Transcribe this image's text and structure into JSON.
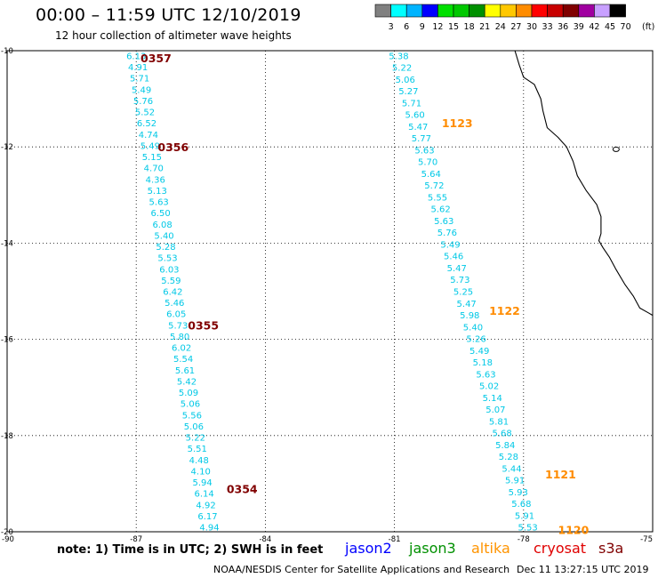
{
  "header": {
    "title": "00:00 – 11:59 UTC 12/10/2019",
    "subtitle": "12 hour collection of altimeter wave heights"
  },
  "legend": {
    "unit": "(ft)",
    "bins": [
      {
        "label": "3",
        "color": "#808080"
      },
      {
        "label": "6",
        "color": "#00ffff"
      },
      {
        "label": "9",
        "color": "#00b4ff"
      },
      {
        "label": "12",
        "color": "#0000ff"
      },
      {
        "label": "15",
        "color": "#00e000"
      },
      {
        "label": "18",
        "color": "#00c800"
      },
      {
        "label": "21",
        "color": "#009000"
      },
      {
        "label": "24",
        "color": "#ffff00"
      },
      {
        "label": "27",
        "color": "#ffc800"
      },
      {
        "label": "30",
        "color": "#ff8c00"
      },
      {
        "label": "33",
        "color": "#ff0000"
      },
      {
        "label": "36",
        "color": "#c80000"
      },
      {
        "label": "39",
        "color": "#800000"
      },
      {
        "label": "42",
        "color": "#a000a0"
      },
      {
        "label": "45",
        "color": "#c8a0ff"
      },
      {
        "label": "70",
        "color": "#000000"
      }
    ]
  },
  "map": {
    "lon_range": [
      -90,
      -75
    ],
    "lat_range": [
      -20,
      -10
    ],
    "x_ticks": [
      "-90",
      "-87",
      "-84",
      "-81",
      "-78",
      "-75"
    ],
    "y_ticks": [
      "-10",
      "-12",
      "-14",
      "-16",
      "-18",
      "-20"
    ],
    "grid": true,
    "grid_style": "dotted",
    "reading_color": "#00c8e6",
    "tracks": [
      {
        "id": "west-track",
        "start": {
          "lon": -87.0,
          "lat": -10.1
        },
        "end": {
          "lon": -85.3,
          "lat": -19.9
        },
        "readings": [
          "6.13",
          "4.91",
          "5.71",
          "5.49",
          "5.76",
          "5.52",
          "6.52",
          "4.74",
          "5.49",
          "5.15",
          "4.70",
          "4.36",
          "5.13",
          "5.63",
          "6.50",
          "6.08",
          "5.40",
          "5.28",
          "5.53",
          "6.03",
          "5.59",
          "6.42",
          "5.46",
          "6.05",
          "5.73",
          "5.80",
          "6.02",
          "5.54",
          "5.61",
          "5.42",
          "5.09",
          "5.06",
          "5.56",
          "5.06",
          "5.22",
          "5.51",
          "4.48",
          "4.10",
          "5.94",
          "6.14",
          "4.92",
          "6.17",
          "4.94"
        ],
        "times": [
          {
            "label": "0357",
            "color": "#800000",
            "lon": -86.9,
            "lat": -10.15
          },
          {
            "label": "0356",
            "color": "#800000",
            "lon": -86.5,
            "lat": -12.0
          },
          {
            "label": "0355",
            "color": "#800000",
            "lon": -85.8,
            "lat": -15.7
          },
          {
            "label": "0354",
            "color": "#800000",
            "lon": -84.9,
            "lat": -19.1
          }
        ]
      },
      {
        "id": "east-track",
        "start": {
          "lon": -80.9,
          "lat": -10.1
        },
        "end": {
          "lon": -77.9,
          "lat": -19.9
        },
        "readings": [
          "5.38",
          "5.22",
          "5.06",
          "5.27",
          "5.71",
          "5.60",
          "5.47",
          "5.77",
          "5.63",
          "5.70",
          "5.64",
          "5.72",
          "5.55",
          "5.62",
          "5.63",
          "5.76",
          "5.49",
          "5.46",
          "5.47",
          "5.73",
          "5.25",
          "5.47",
          "5.98",
          "5.40",
          "5.26",
          "5.49",
          "5.18",
          "5.63",
          "5.02",
          "5.14",
          "5.07",
          "5.81",
          "5.68",
          "5.84",
          "5.28",
          "5.44",
          "5.91",
          "5.93",
          "5.68",
          "5.91",
          "5.53"
        ],
        "times": [
          {
            "label": "1123",
            "color": "#ff8c00",
            "lon": -79.9,
            "lat": -11.5
          },
          {
            "label": "1122",
            "color": "#ff8c00",
            "lon": -78.8,
            "lat": -15.4
          },
          {
            "label": "1121",
            "color": "#ff8c00",
            "lon": -77.5,
            "lat": -18.8
          },
          {
            "label": "1120",
            "color": "#ff8c00",
            "lon": -77.2,
            "lat": -19.95
          }
        ]
      }
    ],
    "coastline": [
      [
        -78.2,
        -10.0
      ],
      [
        -78.1,
        -10.3
      ],
      [
        -78.0,
        -10.55
      ],
      [
        -77.75,
        -10.7
      ],
      [
        -77.6,
        -11.0
      ],
      [
        -77.55,
        -11.25
      ],
      [
        -77.45,
        -11.6
      ],
      [
        -77.2,
        -11.8
      ],
      [
        -77.0,
        -12.0
      ],
      [
        -76.85,
        -12.3
      ],
      [
        -76.75,
        -12.6
      ],
      [
        -76.55,
        -12.9
      ],
      [
        -76.3,
        -13.2
      ],
      [
        -76.2,
        -13.45
      ],
      [
        -76.2,
        -13.8
      ],
      [
        -76.25,
        -13.95
      ],
      [
        -76.15,
        -14.1
      ],
      [
        -76.0,
        -14.3
      ],
      [
        -75.85,
        -14.55
      ],
      [
        -75.65,
        -14.85
      ],
      [
        -75.45,
        -15.1
      ],
      [
        -75.3,
        -15.35
      ],
      [
        -75.1,
        -15.45
      ],
      [
        -75.0,
        -15.5
      ]
    ],
    "island": {
      "lon": -75.85,
      "lat": -12.05
    }
  },
  "footer": {
    "note": "note: 1) Time is in UTC; 2) SWH is in feet",
    "satellites": [
      {
        "name": "jason2",
        "color": "#0000ff"
      },
      {
        "name": "jason3",
        "color": "#009000"
      },
      {
        "name": "altika",
        "color": "#ff9400"
      },
      {
        "name": "cryosat",
        "color": "#e00000"
      },
      {
        "name": "s3a",
        "color": "#800000"
      }
    ],
    "credit": "NOAA/NESDIS Center for Satellite Applications and Research",
    "timestamp": "Dec 11 13:27:15 UTC 2019"
  }
}
